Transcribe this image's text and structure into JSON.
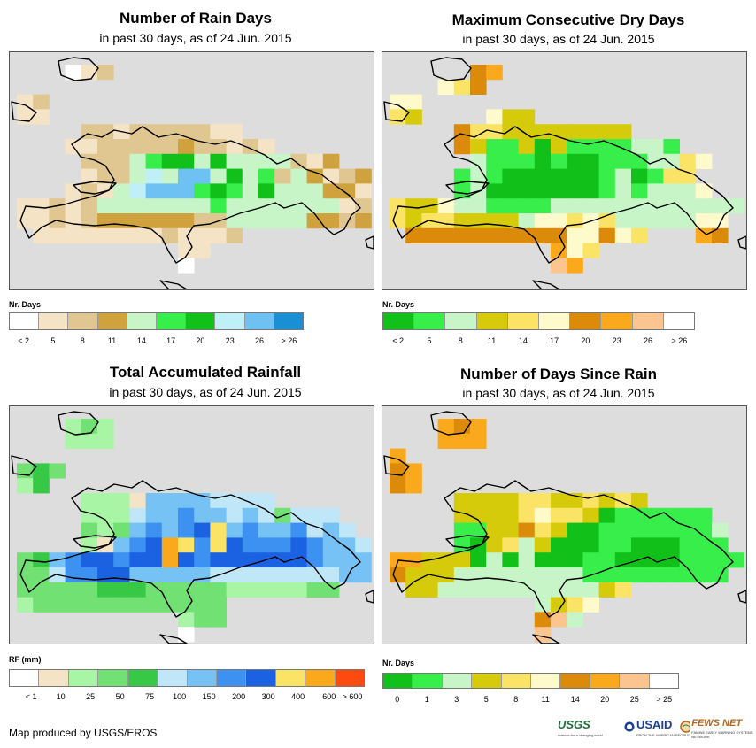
{
  "colors": {
    "map_bg": "#dddddd",
    "outline": "#000000"
  },
  "panels": [
    {
      "id": "rain-days",
      "title": "Number of Rain Days",
      "subtitle": "in past 30 days, as of 24 Jun. 2015",
      "legend_title": "Nr. Days",
      "legend_colors": [
        "#ffffff",
        "#f5e3c6",
        "#e0c791",
        "#cfa23e",
        "#c7f5c7",
        "#37ee4b",
        "#12c01a",
        "#bff0f8",
        "#6ec2f3",
        "#1b8fd3"
      ],
      "legend_ticks": [
        "< 2",
        "5",
        "8",
        "11",
        "14",
        "17",
        "20",
        "23",
        "26",
        "> 26"
      ],
      "grid": [
        "..w t w t....................",
        "t...........................",
        "tbb.........................",
        "tbb.............................",
        ".......bcbbbbbtt.............",
        "......bbbcggccbbbt...........",
        ".......bbbbGGcGGgccbbg.....",
        ".....tbbbcccsslGsslGcc.cbccbb",
        ".....t..tssdlllllGGsGdgcc.",
        "..tbbbtbgllllllllGGGllllllgbbtt",
        "..tbbbtbbcttbgbgglllllllccc",
        "....ttbbccbtbbbttb.....",
        "...........tb...........",
        "............w............"
      ]
    },
    {
      "id": "dry-days",
      "title": "Maximum Consecutive Dry Days",
      "subtitle": "in past 30 days, as of 24 Jun. 2015",
      "legend_title": "Nr. Days",
      "legend_colors": [
        "#12c01a",
        "#37ee4b",
        "#c7f5c7",
        "#d6cb0b",
        "#fbe366",
        "#fffacc",
        "#db8a0a",
        "#fba91c",
        "#fcc48e",
        "#ffffff"
      ],
      "legend_ticks": [
        "< 2",
        "5",
        "8",
        "11",
        "14",
        "17",
        "20",
        "23",
        "26",
        "> 26"
      ],
      "grid": [],
      "note": "grid drawn by script"
    },
    {
      "id": "rainfall",
      "title": "Total Accumulated Rainfall",
      "subtitle": "in past 30 days, as of 24 Jun. 2015",
      "legend_title": "RF (mm)",
      "legend_colors": [
        "#ffffff",
        "#f5e3c6",
        "#a8f5a6",
        "#72e174",
        "#37c845",
        "#bfe7f8",
        "#76c2f4",
        "#3d91f0",
        "#1a62e2",
        "#fbe366",
        "#fba91c",
        "#fd4a0e"
      ],
      "legend_ticks": [
        "< 1",
        "10",
        "25",
        "50",
        "75",
        "100",
        "150",
        "200",
        "300",
        "400",
        "600",
        "> 600"
      ]
    },
    {
      "id": "days-since-rain",
      "title": "Number of Days Since Rain",
      "subtitle": "in past 30 days, as of 24 Jun. 2015",
      "legend_title": "Nr. Days",
      "legend_colors": [
        "#12c01a",
        "#37ee4b",
        "#c7f5c7",
        "#d6cb0b",
        "#fbe366",
        "#fffacc",
        "#db8a0a",
        "#fba91c",
        "#fcc48e",
        "#ffffff"
      ],
      "legend_ticks": [
        "0",
        "1",
        "3",
        "5",
        "8",
        "11",
        "14",
        "20",
        "25",
        "> 25"
      ]
    }
  ],
  "credit": "Map produced by USGS/EROS",
  "logos": {
    "usgs": "USGS",
    "usgs_tag": "science for a changing world",
    "usaid": "USAID",
    "usaid_tag": "FROM THE AMERICAN PEOPLE",
    "fews": "FEWS NET",
    "fews_tag": "FAMINE EARLY WARNING SYSTEMS NETWORK"
  }
}
